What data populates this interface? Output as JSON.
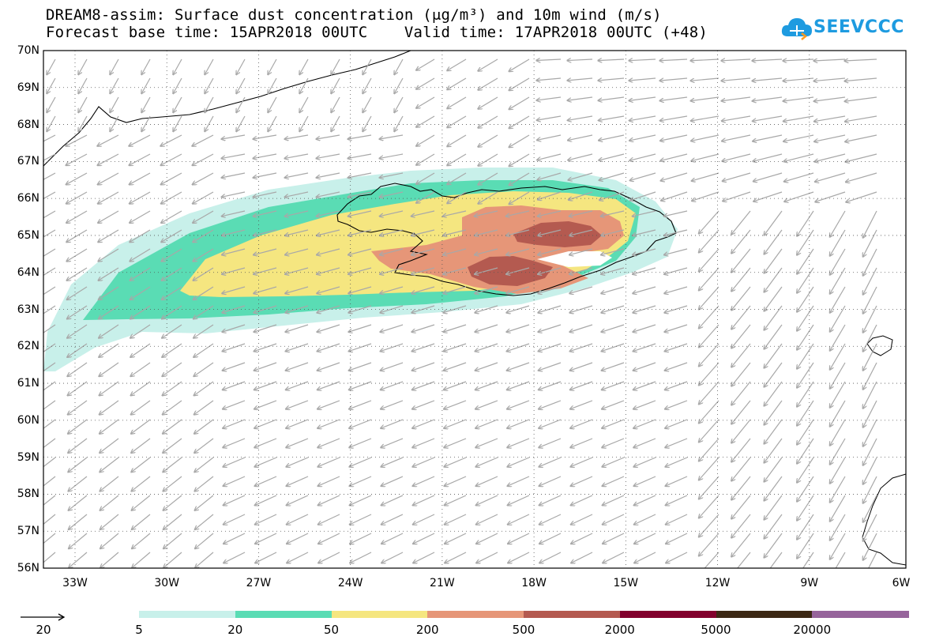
{
  "title": {
    "line1": "DREAM8-assim: Surface dust concentration (μg/m³) and 10m wind (m/s)",
    "line2": "Forecast base time: 15APR2018 00UTC    Valid time: 17APR2018 00UTC (+48)"
  },
  "logo": {
    "text": "SEEVCCC",
    "icon": "cloud-icon",
    "color": "#1e9be0"
  },
  "map": {
    "lat_labels": [
      "70N",
      "69N",
      "68N",
      "67N",
      "66N",
      "65N",
      "64N",
      "63N",
      "62N",
      "61N",
      "60N",
      "59N",
      "58N",
      "57N",
      "56N"
    ],
    "lon_labels": [
      "33W",
      "30W",
      "27W",
      "24W",
      "21W",
      "18W",
      "15W",
      "12W",
      "9W",
      "6W"
    ],
    "region": "Iceland and North Atlantic"
  },
  "legend": {
    "colors": [
      "#c8f0ea",
      "#5adcb4",
      "#f5e680",
      "#e69678",
      "#b45a50",
      "#82002d",
      "#3c2814",
      "#96649b"
    ],
    "labels": [
      "5",
      "20",
      "50",
      "200",
      "500",
      "2000",
      "5000",
      "20000"
    ],
    "reference_vector": {
      "value": "20",
      "icon": "arrow-right-icon"
    }
  }
}
